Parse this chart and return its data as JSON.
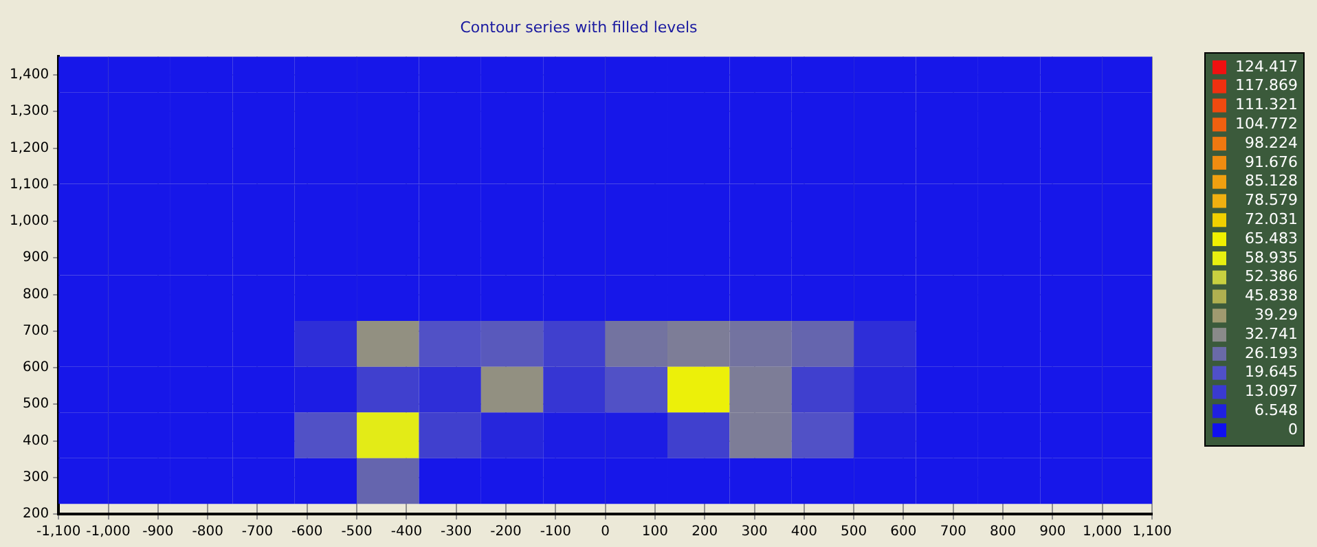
{
  "chart_data": {
    "type": "heatmap",
    "title": "Contour series with filled levels",
    "x": [
      -1062.5,
      -937.5,
      -812.5,
      -687.5,
      -562.5,
      -437.5,
      -312.5,
      -187.5,
      -62.5,
      62.5,
      187.5,
      312.5,
      437.5,
      562.5,
      687.5,
      812.5,
      937.5,
      1062.5
    ],
    "y": [
      1415,
      1290,
      1165,
      1040,
      915,
      790,
      665,
      540,
      415,
      290
    ],
    "cells": [
      [
        3,
        3,
        3,
        3,
        3,
        3,
        3,
        3,
        3,
        3,
        3,
        3,
        3,
        3,
        3,
        3,
        3,
        3
      ],
      [
        3,
        3,
        3,
        3,
        3,
        3,
        3,
        3,
        3,
        3,
        3,
        3,
        3,
        3,
        3,
        3,
        3,
        3
      ],
      [
        3,
        3,
        3,
        3,
        3,
        3,
        3,
        3,
        3,
        3,
        3,
        3,
        3,
        3,
        3,
        3,
        3,
        3
      ],
      [
        3,
        3,
        3,
        3,
        3,
        3,
        3,
        3,
        3,
        3,
        3,
        3,
        3,
        3,
        3,
        3,
        3,
        3
      ],
      [
        3,
        3,
        3,
        3,
        3,
        3,
        3,
        3,
        3,
        3,
        3,
        3,
        3,
        3,
        3,
        3,
        3,
        3
      ],
      [
        3,
        3,
        3,
        3,
        3,
        3,
        3,
        3,
        3,
        3,
        3,
        3,
        3,
        3,
        3,
        3,
        3,
        3
      ],
      [
        3,
        3,
        3,
        3,
        10,
        35,
        20,
        22,
        15,
        28,
        30,
        28,
        25,
        10,
        3,
        3,
        3,
        3
      ],
      [
        3,
        3,
        3,
        3,
        5,
        15,
        10,
        35,
        12,
        20,
        62,
        30,
        15,
        8,
        3,
        3,
        3,
        3
      ],
      [
        3,
        3,
        3,
        3,
        20,
        58,
        15,
        8,
        5,
        5,
        15,
        30,
        20,
        5,
        3,
        3,
        3,
        3
      ],
      [
        3,
        3,
        3,
        3,
        3,
        25,
        3,
        3,
        3,
        3,
        3,
        3,
        3,
        3,
        3,
        3,
        3,
        3
      ]
    ],
    "xlim": [
      -1100,
      1100
    ],
    "ylim": [
      200,
      1450
    ],
    "xticks": [
      {
        "value": -1100,
        "label": "-1,100"
      },
      {
        "value": -1000,
        "label": "-1,000"
      },
      -900,
      -800,
      -700,
      -600,
      -500,
      -400,
      -300,
      -200,
      -100,
      0,
      100,
      200,
      300,
      400,
      500,
      600,
      700,
      800,
      900,
      {
        "value": 1000,
        "label": "1,000"
      },
      {
        "value": 1100,
        "label": "1,100"
      }
    ],
    "yticks": [
      200,
      300,
      400,
      500,
      600,
      700,
      800,
      900,
      {
        "value": 1000,
        "label": "1,000"
      },
      {
        "value": 1100,
        "label": "1,100"
      },
      {
        "value": 1200,
        "label": "1,200"
      },
      {
        "value": 1300,
        "label": "1,300"
      },
      {
        "value": 1400,
        "label": "1,400"
      }
    ],
    "cticks": [
      0,
      6.548,
      13.097,
      19.645,
      26.193,
      32.741,
      39.29,
      45.838,
      52.386,
      58.935,
      65.483,
      72.031,
      78.579,
      85.128,
      91.676,
      98.224,
      104.772,
      111.321,
      117.869,
      124.417
    ],
    "colors": [
      "#1010f0",
      "#2020e0",
      "#3a3ad0",
      "#5050c8",
      "#6a6aa8",
      "#8a8a8a",
      "#a09a70",
      "#b0b050",
      "#c8d040",
      "#e8f010",
      "#f0f000",
      "#f0d000",
      "#f0b010",
      "#f0a010",
      "#f08c10",
      "#f07810",
      "#f06010",
      "#f04a10",
      "#f03010",
      "#f01010"
    ],
    "grid": true
  }
}
